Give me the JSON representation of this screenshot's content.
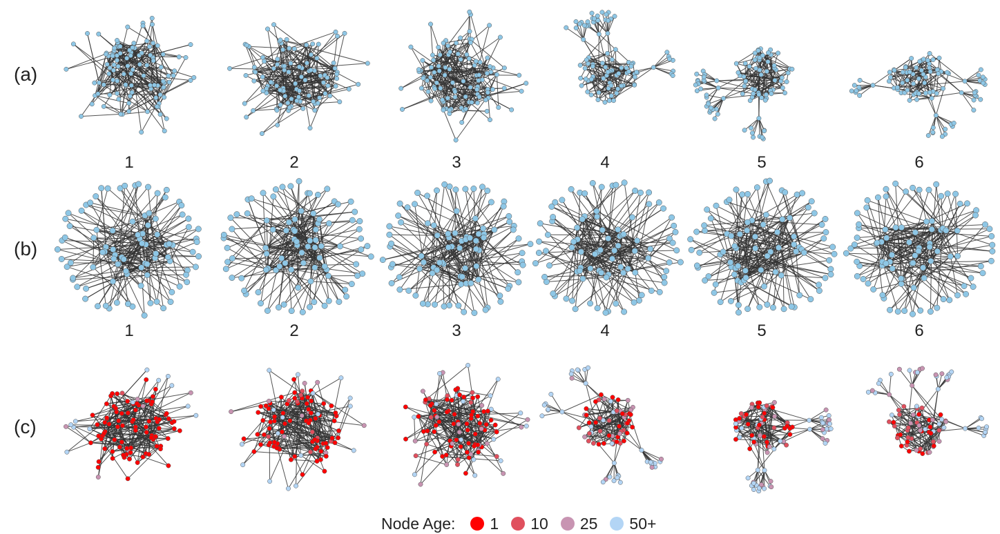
{
  "rows": [
    {
      "label": "(a)",
      "numbers": [
        "1",
        "2",
        "3",
        "4",
        "5",
        "6"
      ]
    },
    {
      "label": "(b)",
      "numbers": [
        "1",
        "2",
        "3",
        "4",
        "5",
        "6"
      ]
    },
    {
      "label": "(c)",
      "numbers": []
    }
  ],
  "legend": {
    "title": "Node Age:",
    "items": [
      {
        "label": "1",
        "color": "#ff0000"
      },
      {
        "label": "10",
        "color": "#e0505e"
      },
      {
        "label": "25",
        "color": "#c894b2"
      },
      {
        "label": "50+",
        "color": "#b3d5f5"
      }
    ]
  },
  "colors": {
    "node_blue": "#8ec7e6",
    "edge": "#333333"
  }
}
